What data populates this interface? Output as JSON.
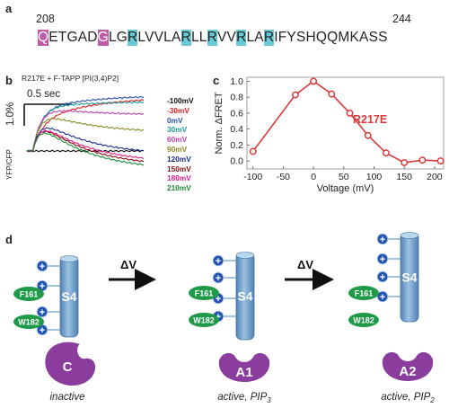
{
  "panels": {
    "a": {
      "label": "a",
      "start_index": "208",
      "end_index": "244",
      "sequence": [
        {
          "t": "Q",
          "hl": "magenta"
        },
        {
          "t": "ETGAD",
          "hl": ""
        },
        {
          "t": "G",
          "hl": "magenta"
        },
        {
          "t": "LG",
          "hl": ""
        },
        {
          "t": "R",
          "hl": "cyan"
        },
        {
          "t": "LVVLA",
          "hl": ""
        },
        {
          "t": "R",
          "hl": "cyan"
        },
        {
          "t": "LL",
          "hl": ""
        },
        {
          "t": "R",
          "hl": "cyan"
        },
        {
          "t": "VV",
          "hl": ""
        },
        {
          "t": "R",
          "hl": "cyan"
        },
        {
          "t": "LA",
          "hl": ""
        },
        {
          "t": "R",
          "hl": "cyan"
        },
        {
          "t": "IFYSHQQMKASS",
          "hl": ""
        }
      ],
      "colors": {
        "magenta": "#c15aa6",
        "cyan": "#6ac9d6"
      }
    },
    "b": {
      "label": "b",
      "title": "R217E + F-TAPP [PI(3,4)P2]",
      "time_scale": "0.5 sec",
      "amp_scale": "1.0%",
      "ylabel": "YFP/CFP",
      "legend": [
        {
          "label": "-100mV",
          "color": "#111111"
        },
        {
          "label": "-30mV",
          "color": "#e02020"
        },
        {
          "label": "0mV",
          "color": "#2a4fb0"
        },
        {
          "label": "30mV",
          "color": "#1a9a9a"
        },
        {
          "label": "60mV",
          "color": "#c040b0"
        },
        {
          "label": "90mV",
          "color": "#8a8a20"
        },
        {
          "label": "120mV",
          "color": "#1a2a8a"
        },
        {
          "label": "150mV",
          "color": "#8a1010"
        },
        {
          "label": "180mV",
          "color": "#e0208a"
        },
        {
          "label": "210mV",
          "color": "#1a8a3a"
        }
      ]
    },
    "c": {
      "label": "c",
      "series_label": "R217E",
      "series_color": "#d93a3a"
    },
    "d": {
      "label": "d",
      "arrow_label": "ΔV",
      "s4_label": "S4",
      "plus": "+",
      "f161": "F161",
      "w182": "W182",
      "states": [
        {
          "name": "C",
          "caption": "inactive",
          "sub": ""
        },
        {
          "name": "A1",
          "caption": "active, PIP",
          "sub": "3"
        },
        {
          "name": "A2",
          "caption": "active, PIP",
          "sub": "2"
        }
      ],
      "colors": {
        "purple": "#8a3d9c",
        "green": "#1f9a48",
        "plus_blue": "#2254b0",
        "helix": "#6b9fc9"
      }
    }
  },
  "chart_data": {
    "type": "line",
    "x": [
      -100,
      -30,
      0,
      30,
      60,
      90,
      120,
      150,
      180,
      210
    ],
    "series": [
      {
        "name": "R217E",
        "values": [
          0.12,
          0.83,
          1.0,
          0.84,
          0.6,
          0.32,
          0.1,
          -0.02,
          0.01,
          0.0
        ]
      }
    ],
    "title": "",
    "xlabel": "Voltage (mV)",
    "ylabel": "Norm. ΔFRET",
    "xlim": [
      -110,
      215
    ],
    "ylim": [
      -0.1,
      1.05
    ],
    "xticks": [
      -100,
      -50,
      0,
      50,
      100,
      150,
      200
    ],
    "yticks": [
      0.0,
      0.2,
      0.4,
      0.6,
      0.8,
      1.0
    ],
    "xtick_labels": [
      "-100",
      "-50",
      "0",
      "50",
      "100",
      "150",
      "200"
    ],
    "ytick_labels": [
      "0.0",
      "0.2",
      "0.4",
      "0.6",
      "0.8",
      "1.0"
    ],
    "grid": false,
    "legend": "none"
  }
}
